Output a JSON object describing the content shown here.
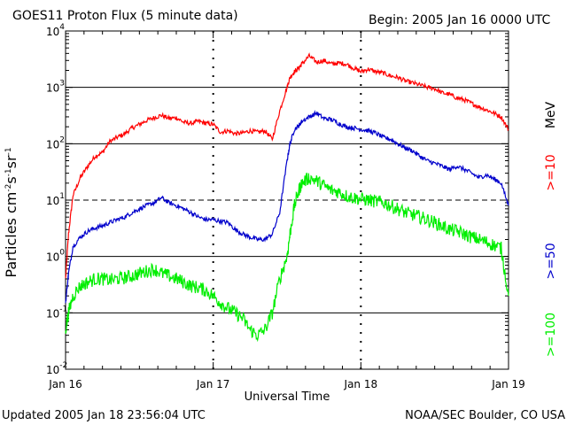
{
  "chart_data": {
    "type": "line",
    "title": "GOES11 Proton Flux (5 minute data)",
    "begin_label": "Begin: 2005 Jan 16 0000 UTC",
    "xlabel": "Universal Time",
    "ylabel": "Particles cm⁻²s⁻¹sr⁻¹",
    "yscale": "log",
    "ylim": [
      0.01,
      10000
    ],
    "xlim": [
      0,
      3
    ],
    "x_unit": "days since 2005 Jan 16 0000 UTC",
    "x_ticks": [
      {
        "value": 0,
        "label": "Jan 16"
      },
      {
        "value": 1,
        "label": "Jan 17"
      },
      {
        "value": 2,
        "label": "Jan 18"
      },
      {
        "value": 3,
        "label": "Jan 19"
      }
    ],
    "y_ticks": [
      {
        "value": 0.01,
        "base": "10",
        "exp": "-2"
      },
      {
        "value": 0.1,
        "base": "10",
        "exp": "-1"
      },
      {
        "value": 1,
        "base": "10",
        "exp": "0"
      },
      {
        "value": 10,
        "base": "10",
        "exp": "1"
      },
      {
        "value": 100,
        "base": "10",
        "exp": "2"
      },
      {
        "value": 1000,
        "base": "10",
        "exp": "3"
      },
      {
        "value": 10000,
        "base": "10",
        "exp": "4"
      }
    ],
    "reference_lines": [
      {
        "value": 1,
        "style": "solid"
      },
      {
        "value": 10,
        "style": "dashed"
      },
      {
        "value": 100,
        "style": "solid"
      },
      {
        "value": 1000,
        "style": "solid"
      },
      {
        "value": 0.1,
        "style": "solid"
      }
    ],
    "unit_label": "MeV",
    "series": [
      {
        "name": ">=10",
        "color": "#ff0000",
        "x": [
          0.0,
          0.02,
          0.05,
          0.1,
          0.15,
          0.2,
          0.25,
          0.3,
          0.35,
          0.4,
          0.45,
          0.5,
          0.55,
          0.6,
          0.65,
          0.7,
          0.75,
          0.8,
          0.85,
          0.9,
          0.95,
          1.0,
          1.05,
          1.1,
          1.15,
          1.2,
          1.25,
          1.3,
          1.35,
          1.4,
          1.45,
          1.5,
          1.52,
          1.55,
          1.58,
          1.6,
          1.65,
          1.7,
          1.75,
          1.8,
          1.85,
          1.9,
          1.95,
          2.0,
          2.05,
          2.1,
          2.15,
          2.2,
          2.25,
          2.3,
          2.35,
          2.4,
          2.45,
          2.5,
          2.55,
          2.6,
          2.65,
          2.7,
          2.75,
          2.8,
          2.85,
          2.9,
          2.95,
          3.0
        ],
        "values": [
          0.4,
          2.5,
          12,
          25,
          40,
          60,
          70,
          110,
          130,
          150,
          190,
          220,
          260,
          290,
          320,
          280,
          290,
          240,
          230,
          250,
          230,
          220,
          160,
          170,
          150,
          155,
          170,
          160,
          170,
          120,
          380,
          1000,
          1500,
          1900,
          2200,
          2600,
          3600,
          2800,
          3000,
          2600,
          2700,
          2600,
          2200,
          1900,
          2100,
          1900,
          1800,
          1600,
          1500,
          1300,
          1200,
          1100,
          1000,
          950,
          800,
          750,
          650,
          600,
          520,
          450,
          400,
          350,
          300,
          180
        ]
      },
      {
        "name": ">=50",
        "color": "#0000cc",
        "x": [
          0.0,
          0.02,
          0.05,
          0.1,
          0.15,
          0.2,
          0.25,
          0.3,
          0.35,
          0.4,
          0.45,
          0.5,
          0.55,
          0.6,
          0.65,
          0.7,
          0.75,
          0.8,
          0.85,
          0.9,
          0.95,
          1.0,
          1.05,
          1.1,
          1.15,
          1.2,
          1.25,
          1.3,
          1.35,
          1.4,
          1.45,
          1.5,
          1.52,
          1.55,
          1.58,
          1.6,
          1.65,
          1.7,
          1.75,
          1.8,
          1.85,
          1.9,
          1.95,
          2.0,
          2.05,
          2.1,
          2.15,
          2.2,
          2.25,
          2.3,
          2.35,
          2.4,
          2.45,
          2.5,
          2.55,
          2.6,
          2.65,
          2.7,
          2.75,
          2.8,
          2.85,
          2.9,
          2.95,
          3.0
        ],
        "values": [
          0.15,
          0.5,
          1.5,
          2.2,
          2.8,
          3.2,
          3.5,
          4.0,
          4.5,
          5.0,
          6.0,
          7.0,
          8.0,
          9.0,
          11,
          9.0,
          8.0,
          7.0,
          6.0,
          5.0,
          4.5,
          4.5,
          4.2,
          4.0,
          3.0,
          2.5,
          2.2,
          2.0,
          2.0,
          2.5,
          6.0,
          50,
          100,
          180,
          210,
          250,
          300,
          350,
          280,
          270,
          230,
          200,
          190,
          180,
          170,
          155,
          130,
          120,
          100,
          85,
          75,
          60,
          50,
          45,
          40,
          35,
          40,
          35,
          30,
          25,
          28,
          24,
          20,
          8
        ]
      },
      {
        "name": ">=100",
        "color": "#00ee00",
        "x": [
          0.0,
          0.02,
          0.05,
          0.1,
          0.15,
          0.2,
          0.25,
          0.3,
          0.35,
          0.4,
          0.45,
          0.5,
          0.55,
          0.6,
          0.65,
          0.7,
          0.75,
          0.8,
          0.85,
          0.9,
          0.95,
          1.0,
          1.05,
          1.1,
          1.15,
          1.2,
          1.25,
          1.3,
          1.35,
          1.4,
          1.45,
          1.5,
          1.52,
          1.55,
          1.58,
          1.6,
          1.65,
          1.7,
          1.75,
          1.8,
          1.85,
          1.9,
          1.95,
          2.0,
          2.05,
          2.1,
          2.15,
          2.2,
          2.25,
          2.3,
          2.35,
          2.4,
          2.45,
          2.5,
          2.55,
          2.6,
          2.65,
          2.7,
          2.75,
          2.8,
          2.85,
          2.9,
          2.95,
          3.0
        ],
        "values": [
          0.05,
          0.1,
          0.2,
          0.3,
          0.35,
          0.4,
          0.4,
          0.38,
          0.4,
          0.42,
          0.45,
          0.5,
          0.55,
          0.6,
          0.5,
          0.45,
          0.4,
          0.35,
          0.3,
          0.28,
          0.25,
          0.2,
          0.15,
          0.12,
          0.1,
          0.08,
          0.05,
          0.04,
          0.05,
          0.1,
          0.4,
          1.0,
          2.5,
          8.0,
          15,
          20,
          25,
          22,
          18,
          15,
          14,
          12,
          11,
          10.5,
          10,
          9.5,
          9.0,
          8.0,
          7.0,
          6.0,
          5.5,
          5.0,
          4.5,
          4.0,
          3.5,
          3.0,
          2.8,
          2.5,
          2.2,
          2.0,
          1.8,
          1.6,
          1.4,
          0.2
        ]
      }
    ]
  },
  "footer": {
    "updated": "Updated 2005 Jan 18 23:56:04 UTC",
    "source": "NOAA/SEC Boulder, CO USA"
  }
}
